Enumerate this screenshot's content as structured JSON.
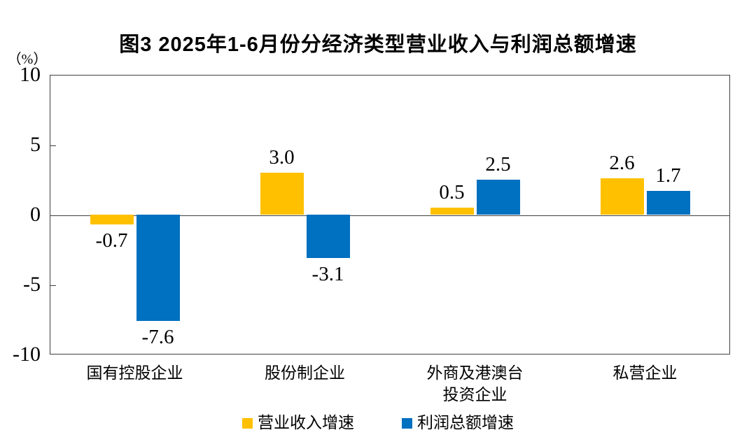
{
  "title": "图3  2025年1-6月份分经济类型营业收入与利润总额增速",
  "y_axis_unit": "（%）",
  "chart_data": {
    "type": "bar",
    "title": "图3  2025年1-6月份分经济类型营业收入与利润总额增速",
    "ylabel": "（%）",
    "ylim": [
      -10,
      10
    ],
    "yticks": [
      10,
      5,
      0,
      -5,
      -10
    ],
    "grid": false,
    "legend_position": "bottom",
    "categories": [
      "国有控股企业",
      "股份制企业",
      "外商及港澳台\n投资企业",
      "私营企业"
    ],
    "series": [
      {
        "name": "营业收入增速",
        "color": "#FFC000",
        "values": [
          -0.7,
          3.0,
          0.5,
          2.6
        ]
      },
      {
        "name": "利润总额增速",
        "color": "#0070C0",
        "values": [
          -7.6,
          -3.1,
          2.5,
          1.7
        ]
      }
    ],
    "data_label_decimals": 1
  }
}
